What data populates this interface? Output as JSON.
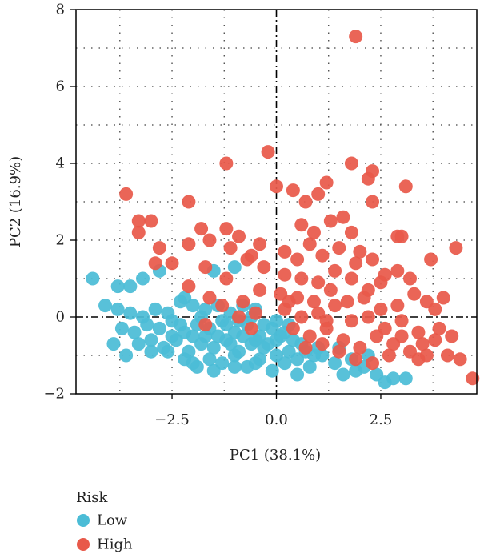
{
  "chart_data": {
    "type": "scatter",
    "xlabel": "PC1 (38.1%)",
    "ylabel": "PC2 (16.9%)",
    "xlim": [
      -4.8,
      4.8
    ],
    "ylim": [
      -2,
      8
    ],
    "xticks": [
      -2.5,
      0.0,
      2.5
    ],
    "xtick_labels": [
      "−2.5",
      "0.0",
      "2.5"
    ],
    "yticks": [
      -2,
      0,
      2,
      4,
      6,
      8
    ],
    "ytick_labels": [
      "−2",
      "0",
      "2",
      "4",
      "6",
      "8"
    ],
    "grid": "dotted",
    "reference_lines": {
      "x": 0,
      "y": 0
    },
    "legend": {
      "title": "Risk",
      "placement": "bottom-left"
    },
    "series": [
      {
        "name": "Low",
        "color": "#4BBCD6",
        "points": [
          [
            -4.4,
            1.0
          ],
          [
            -3.8,
            0.8
          ],
          [
            -3.5,
            0.8
          ],
          [
            -3.2,
            1.0
          ],
          [
            -2.8,
            1.2
          ],
          [
            -2.2,
            0.5
          ],
          [
            -1.5,
            1.2
          ],
          [
            -1.0,
            1.3
          ],
          [
            -4.1,
            0.3
          ],
          [
            -3.8,
            0.2
          ],
          [
            -3.5,
            0.1
          ],
          [
            -3.2,
            0.0
          ],
          [
            -2.9,
            0.2
          ],
          [
            -2.6,
            0.1
          ],
          [
            -2.3,
            0.4
          ],
          [
            -2.0,
            0.3
          ],
          [
            -1.7,
            0.2
          ],
          [
            -1.4,
            0.3
          ],
          [
            -1.1,
            0.1
          ],
          [
            -0.8,
            0.3
          ],
          [
            -0.5,
            0.2
          ],
          [
            -3.7,
            -0.3
          ],
          [
            -3.4,
            -0.4
          ],
          [
            -3.1,
            -0.2
          ],
          [
            -2.8,
            -0.3
          ],
          [
            -2.5,
            -0.1
          ],
          [
            -2.2,
            -0.4
          ],
          [
            -1.9,
            -0.2
          ],
          [
            -1.6,
            -0.3
          ],
          [
            -1.3,
            -0.1
          ],
          [
            -1.0,
            -0.4
          ],
          [
            -0.7,
            -0.2
          ],
          [
            -0.4,
            -0.5
          ],
          [
            -0.1,
            -0.3
          ],
          [
            0.2,
            -0.4
          ],
          [
            -3.9,
            -0.7
          ],
          [
            -3.6,
            -1.0
          ],
          [
            -3.3,
            -0.7
          ],
          [
            -3.0,
            -0.6
          ],
          [
            -2.7,
            -0.8
          ],
          [
            -2.4,
            -0.6
          ],
          [
            -2.1,
            -0.9
          ],
          [
            -1.8,
            -0.7
          ],
          [
            -1.5,
            -0.8
          ],
          [
            -1.2,
            -0.6
          ],
          [
            -0.9,
            -0.9
          ],
          [
            -0.6,
            -0.7
          ],
          [
            -0.3,
            -0.8
          ],
          [
            0.0,
            -0.6
          ],
          [
            0.3,
            -0.9
          ],
          [
            0.6,
            -0.7
          ],
          [
            -2.2,
            -1.1
          ],
          [
            -1.9,
            -1.3
          ],
          [
            -1.6,
            -1.1
          ],
          [
            -1.3,
            -1.2
          ],
          [
            -1.0,
            -1.0
          ],
          [
            -0.7,
            -1.3
          ],
          [
            -0.4,
            -1.1
          ],
          [
            -0.1,
            -1.4
          ],
          [
            0.2,
            -1.2
          ],
          [
            0.5,
            -1.1
          ],
          [
            0.8,
            -1.3
          ],
          [
            1.1,
            -1.0
          ],
          [
            1.4,
            -1.2
          ],
          [
            1.8,
            -1.1
          ],
          [
            2.1,
            -1.3
          ],
          [
            2.4,
            -1.5
          ],
          [
            -2.5,
            -0.5
          ],
          [
            -2.0,
            -0.5
          ],
          [
            -1.7,
            -0.5
          ],
          [
            -1.4,
            -0.5
          ],
          [
            -1.1,
            -0.7
          ],
          [
            -0.8,
            -0.5
          ],
          [
            -0.5,
            -0.6
          ],
          [
            -0.2,
            -0.7
          ],
          [
            0.1,
            -0.5
          ],
          [
            0.4,
            -0.6
          ],
          [
            0.7,
            -0.9
          ],
          [
            1.0,
            -0.8
          ],
          [
            -2.6,
            -0.9
          ],
          [
            -2.3,
            -0.2
          ],
          [
            -1.8,
            0.0
          ],
          [
            -1.2,
            -0.2
          ],
          [
            -0.9,
            -0.1
          ],
          [
            -0.6,
            0.0
          ],
          [
            -0.3,
            -0.2
          ],
          [
            0.0,
            -0.1
          ],
          [
            0.3,
            -0.2
          ],
          [
            -3.0,
            -0.9
          ],
          [
            -2.0,
            -1.2
          ],
          [
            -1.5,
            -1.4
          ],
          [
            -1.0,
            -1.3
          ],
          [
            -0.5,
            -1.2
          ],
          [
            0.0,
            -1.0
          ],
          [
            0.5,
            -1.5
          ],
          [
            1.6,
            -1.5
          ],
          [
            1.9,
            -1.4
          ],
          [
            2.2,
            -1.0
          ],
          [
            2.6,
            -1.7
          ],
          [
            2.8,
            -1.6
          ],
          [
            3.1,
            -1.6
          ],
          [
            1.5,
            -0.8
          ],
          [
            0.9,
            -1.0
          ]
        ]
      },
      {
        "name": "High",
        "color": "#E8594A",
        "points": [
          [
            1.9,
            7.3
          ],
          [
            -0.2,
            4.3
          ],
          [
            -1.2,
            4.0
          ],
          [
            1.8,
            4.0
          ],
          [
            2.3,
            3.8
          ],
          [
            2.2,
            3.6
          ],
          [
            -3.6,
            3.2
          ],
          [
            0.0,
            3.4
          ],
          [
            1.2,
            3.5
          ],
          [
            1.0,
            3.2
          ],
          [
            3.1,
            3.4
          ],
          [
            2.3,
            3.0
          ],
          [
            -2.1,
            3.0
          ],
          [
            0.4,
            3.3
          ],
          [
            0.7,
            3.0
          ],
          [
            -3.3,
            2.5
          ],
          [
            -3.0,
            2.5
          ],
          [
            -3.3,
            2.2
          ],
          [
            -1.8,
            2.3
          ],
          [
            -1.2,
            2.3
          ],
          [
            -0.9,
            2.1
          ],
          [
            -0.4,
            1.9
          ],
          [
            0.6,
            2.4
          ],
          [
            0.9,
            2.2
          ],
          [
            1.3,
            2.5
          ],
          [
            1.6,
            2.6
          ],
          [
            1.8,
            2.2
          ],
          [
            2.0,
            1.7
          ],
          [
            2.9,
            2.1
          ],
          [
            3.0,
            2.1
          ],
          [
            4.3,
            1.8
          ],
          [
            -2.8,
            1.8
          ],
          [
            -2.1,
            1.9
          ],
          [
            -1.6,
            2.0
          ],
          [
            -1.1,
            1.8
          ],
          [
            -0.6,
            1.6
          ],
          [
            0.2,
            1.7
          ],
          [
            0.5,
            1.5
          ],
          [
            0.8,
            1.9
          ],
          [
            1.1,
            1.6
          ],
          [
            1.5,
            1.8
          ],
          [
            1.9,
            1.4
          ],
          [
            2.3,
            1.5
          ],
          [
            2.6,
            1.1
          ],
          [
            2.9,
            1.2
          ],
          [
            3.7,
            1.5
          ],
          [
            -2.9,
            1.4
          ],
          [
            -2.5,
            1.4
          ],
          [
            -1.7,
            1.3
          ],
          [
            -1.2,
            1.0
          ],
          [
            -0.7,
            1.5
          ],
          [
            -0.3,
            1.3
          ],
          [
            0.2,
            1.1
          ],
          [
            0.6,
            1.0
          ],
          [
            1.0,
            0.9
          ],
          [
            1.4,
            1.2
          ],
          [
            1.8,
            1.0
          ],
          [
            2.2,
            0.7
          ],
          [
            2.5,
            0.9
          ],
          [
            3.2,
            1.0
          ],
          [
            3.6,
            0.4
          ],
          [
            4.0,
            0.5
          ],
          [
            -2.1,
            0.8
          ],
          [
            -1.6,
            0.5
          ],
          [
            -1.3,
            0.3
          ],
          [
            -0.8,
            0.4
          ],
          [
            -0.4,
            0.7
          ],
          [
            0.1,
            0.6
          ],
          [
            0.5,
            0.5
          ],
          [
            0.9,
            0.4
          ],
          [
            1.3,
            0.7
          ],
          [
            1.7,
            0.4
          ],
          [
            2.1,
            0.5
          ],
          [
            2.5,
            0.2
          ],
          [
            2.9,
            0.3
          ],
          [
            3.3,
            0.6
          ],
          [
            3.8,
            0.2
          ],
          [
            -0.9,
            0.0
          ],
          [
            -0.5,
            0.1
          ],
          [
            0.2,
            0.2
          ],
          [
            0.6,
            0.0
          ],
          [
            1.0,
            0.1
          ],
          [
            1.4,
            0.3
          ],
          [
            1.8,
            -0.1
          ],
          [
            2.2,
            0.0
          ],
          [
            2.6,
            -0.3
          ],
          [
            3.0,
            -0.1
          ],
          [
            3.4,
            -0.4
          ],
          [
            3.9,
            -0.3
          ],
          [
            4.2,
            -0.5
          ],
          [
            0.4,
            -0.3
          ],
          [
            0.8,
            -0.5
          ],
          [
            1.2,
            -0.3
          ],
          [
            1.6,
            -0.6
          ],
          [
            2.0,
            -0.8
          ],
          [
            2.4,
            -0.5
          ],
          [
            2.8,
            -0.7
          ],
          [
            3.2,
            -0.9
          ],
          [
            3.6,
            -1.0
          ],
          [
            4.1,
            -1.0
          ],
          [
            4.4,
            -1.1
          ],
          [
            4.7,
            -1.6
          ],
          [
            0.7,
            -0.8
          ],
          [
            1.1,
            -0.7
          ],
          [
            1.5,
            -0.9
          ],
          [
            1.9,
            -1.1
          ],
          [
            2.3,
            -1.2
          ],
          [
            2.7,
            -1.0
          ],
          [
            3.0,
            -0.5
          ],
          [
            3.5,
            -0.7
          ],
          [
            -1.7,
            -0.2
          ],
          [
            -0.6,
            -0.3
          ],
          [
            0.3,
            0.4
          ],
          [
            1.2,
            -0.1
          ],
          [
            3.8,
            -0.6
          ],
          [
            3.4,
            -1.1
          ]
        ]
      }
    ]
  }
}
